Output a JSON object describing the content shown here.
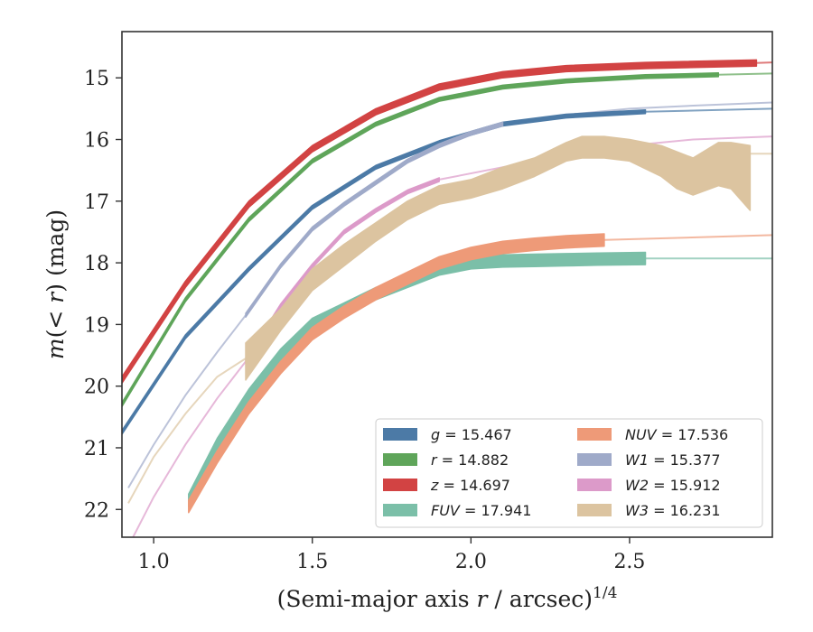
{
  "chart_data": {
    "type": "line",
    "xlabel": "(Semi-major axis r / arcsec)^1/4",
    "ylabel": "m(< r) (mag)",
    "xlim": [
      0.9,
      2.95
    ],
    "ylim": [
      22.45,
      14.25
    ],
    "y_inverted": true,
    "grid": false,
    "legend_position": "lower right",
    "x_ticks": [
      1.0,
      1.5,
      2.0,
      2.5
    ],
    "x_tick_labels": [
      "1.0",
      "1.5",
      "2.0",
      "2.5"
    ],
    "y_ticks": [
      15,
      16,
      17,
      18,
      19,
      20,
      21,
      22
    ],
    "y_tick_labels": [
      "15",
      "16",
      "17",
      "18",
      "19",
      "20",
      "21",
      "22"
    ],
    "series": [
      {
        "name": "g = 15.467",
        "label_var": "g",
        "label_val": "= 15.467",
        "color": "#4c7aa6",
        "band_x": [
          0.9,
          1.1,
          1.3,
          1.5,
          1.7,
          1.9,
          2.1,
          2.3,
          2.55
        ],
        "band_y": [
          20.75,
          19.2,
          18.1,
          17.1,
          16.45,
          16.05,
          15.75,
          15.62,
          15.55
        ],
        "half_width": 0.03,
        "ext_x": [
          2.55,
          2.95
        ],
        "ext_y": [
          15.55,
          15.5
        ]
      },
      {
        "name": "r = 14.882",
        "label_var": "r",
        "label_val": "= 14.882",
        "color": "#5fa55a",
        "band_x": [
          0.9,
          1.1,
          1.3,
          1.5,
          1.7,
          1.9,
          2.1,
          2.3,
          2.55,
          2.78
        ],
        "band_y": [
          20.3,
          18.6,
          17.3,
          16.35,
          15.75,
          15.35,
          15.15,
          15.05,
          14.98,
          14.95
        ],
        "half_width": 0.03,
        "ext_x": [
          2.78,
          2.95
        ],
        "ext_y": [
          14.95,
          14.93
        ]
      },
      {
        "name": "z = 14.697",
        "label_var": "z",
        "label_val": "= 14.697",
        "color": "#d24343",
        "band_x": [
          0.9,
          1.1,
          1.3,
          1.5,
          1.7,
          1.9,
          2.1,
          2.3,
          2.55,
          2.9
        ],
        "band_y": [
          19.9,
          18.35,
          17.05,
          16.15,
          15.55,
          15.15,
          14.95,
          14.85,
          14.8,
          14.76
        ],
        "half_width": 0.05,
        "ext_x": [
          2.9,
          2.95
        ],
        "ext_y": [
          14.76,
          14.75
        ]
      },
      {
        "name": "FUV = 17.941",
        "label_var": "FUV",
        "label_val": "= 17.941",
        "color": "#7bbfa8",
        "band_x": [
          1.11,
          1.2,
          1.3,
          1.4,
          1.5,
          1.6,
          1.7,
          1.8,
          1.9,
          2.0,
          2.1,
          2.2,
          2.3,
          2.4,
          2.55
        ],
        "band_y": [
          21.85,
          20.95,
          20.15,
          19.5,
          19.0,
          18.75,
          18.5,
          18.3,
          18.1,
          18.0,
          17.97,
          17.96,
          17.95,
          17.94,
          17.93
        ],
        "half_width": 0.1,
        "ext_x": [
          2.55,
          2.95
        ],
        "ext_y": [
          17.93,
          17.93
        ],
        "low_x": [
          1.0,
          1.08
        ],
        "low_y": [
          23.3,
          22.5
        ]
      },
      {
        "name": "NUV = 17.536",
        "label_var": "NUV",
        "label_val": "= 17.536",
        "color": "#ee9a78",
        "band_x": [
          1.11,
          1.2,
          1.3,
          1.4,
          1.5,
          1.6,
          1.7,
          1.8,
          1.9,
          2.0,
          2.1,
          2.2,
          2.3,
          2.42
        ],
        "band_y": [
          21.95,
          21.15,
          20.35,
          19.7,
          19.15,
          18.8,
          18.5,
          18.25,
          18.0,
          17.85,
          17.75,
          17.7,
          17.66,
          17.63
        ],
        "half_width": 0.1,
        "ext_x": [
          2.42,
          2.95
        ],
        "ext_y": [
          17.63,
          17.55
        ],
        "low_x": [
          1.0,
          1.06
        ],
        "low_y": [
          23.3,
          22.55
        ]
      },
      {
        "name": "W1 = 15.377",
        "label_var": "W1",
        "label_val": "= 15.377",
        "color": "#9faac9",
        "band_x": [
          1.29,
          1.4,
          1.5,
          1.6,
          1.7,
          1.8,
          1.9,
          2.0,
          2.1
        ],
        "band_y": [
          18.85,
          18.05,
          17.45,
          17.05,
          16.7,
          16.35,
          16.1,
          15.9,
          15.75
        ],
        "half_width": 0.03,
        "ext_x": [
          2.1,
          2.3,
          2.5,
          2.7,
          2.95
        ],
        "ext_y": [
          15.75,
          15.6,
          15.5,
          15.45,
          15.4
        ],
        "low_x": [
          0.92,
          1.0,
          1.1,
          1.2,
          1.29
        ],
        "low_y": [
          21.65,
          20.95,
          20.15,
          19.45,
          18.85
        ]
      },
      {
        "name": "W2 = 15.912",
        "label_var": "W2",
        "label_val": "= 15.912",
        "color": "#dc9ac9",
        "band_x": [
          1.29,
          1.4,
          1.5,
          1.6,
          1.7,
          1.8,
          1.9
        ],
        "band_y": [
          19.6,
          18.7,
          18.05,
          17.5,
          17.15,
          16.85,
          16.65
        ],
        "half_width": 0.03,
        "ext_x": [
          1.9,
          2.1,
          2.3,
          2.5,
          2.7,
          2.95
        ],
        "ext_y": [
          16.65,
          16.45,
          16.25,
          16.1,
          16.0,
          15.95
        ],
        "low_x": [
          0.92,
          1.0,
          1.1,
          1.2,
          1.29
        ],
        "low_y": [
          22.6,
          21.8,
          20.95,
          20.2,
          19.6
        ]
      },
      {
        "name": "W3 = 16.231",
        "label_var": "W3",
        "label_val": "= 16.231",
        "color": "#dcc4a0",
        "band_x": [
          1.29,
          1.4,
          1.5,
          1.6,
          1.7,
          1.8,
          1.9,
          2.0,
          2.1,
          2.2,
          2.3,
          2.35,
          2.42,
          2.5,
          2.6,
          2.65,
          2.7,
          2.78,
          2.82,
          2.88
        ],
        "band_top": [
          19.3,
          18.75,
          18.1,
          17.7,
          17.35,
          17.0,
          16.75,
          16.65,
          16.45,
          16.3,
          16.05,
          15.95,
          15.95,
          16.0,
          16.1,
          16.2,
          16.3,
          16.05,
          16.05,
          16.1
        ],
        "band_bot": [
          19.9,
          19.1,
          18.45,
          18.05,
          17.65,
          17.3,
          17.05,
          16.95,
          16.8,
          16.6,
          16.35,
          16.3,
          16.3,
          16.35,
          16.6,
          16.8,
          16.9,
          16.75,
          16.8,
          17.15
        ],
        "ext_x": [
          2.88,
          2.95
        ],
        "ext_y": [
          16.23,
          16.23
        ],
        "low_x": [
          0.92,
          1.0,
          1.1,
          1.2,
          1.29
        ],
        "low_y": [
          21.9,
          21.15,
          20.45,
          19.85,
          19.55
        ]
      }
    ]
  }
}
